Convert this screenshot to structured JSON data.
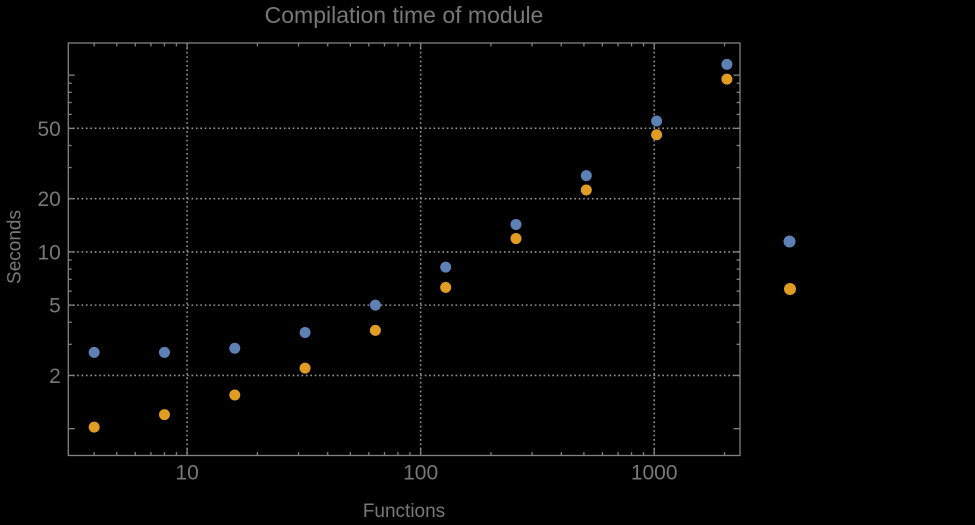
{
  "chart_data": {
    "type": "scatter",
    "title": "Compilation time of module",
    "xlabel": "Functions",
    "ylabel": "Seconds",
    "x_scale": "log",
    "y_scale": "log",
    "xlim": [
      3.1,
      2330
    ],
    "ylim": [
      0.705,
      152
    ],
    "x": [
      4,
      8,
      16,
      32,
      64,
      128,
      256,
      512,
      1024,
      2048
    ],
    "series": [
      {
        "color": "#5E81B5",
        "values": [
          2.7,
          2.7,
          2.85,
          3.5,
          5.0,
          8.2,
          14.3,
          27,
          55,
          115
        ]
      },
      {
        "color": "#E19C24",
        "values": [
          1.02,
          1.2,
          1.55,
          2.2,
          3.6,
          6.3,
          11.9,
          22.4,
          46,
          95
        ]
      }
    ],
    "x_major_ticks": [
      10,
      100,
      1000
    ],
    "x_major_labels": [
      "10",
      "100",
      "1000"
    ],
    "x_minor_ticks": [
      4,
      5,
      6,
      7,
      8,
      9,
      20,
      30,
      40,
      50,
      60,
      70,
      80,
      90,
      200,
      300,
      400,
      500,
      600,
      700,
      800,
      900,
      2000
    ],
    "y_major_ticks": [
      1,
      2,
      5,
      10,
      20,
      50,
      100
    ],
    "y_major_labels": [
      "",
      "2",
      "5",
      "10",
      "20",
      "50",
      ""
    ],
    "y_minor_ticks": [
      3,
      4,
      6,
      7,
      8,
      9,
      30,
      40,
      60,
      70,
      80,
      90
    ],
    "x_gridlines": [
      10,
      100,
      1000
    ],
    "y_gridlines": [
      2,
      5,
      10,
      20,
      50
    ],
    "grid_style": "dotted",
    "legend": {
      "position": "right-margin",
      "labels_visible": false,
      "marker_colors": [
        "#5E81B5",
        "#E19C24"
      ]
    },
    "colors": {
      "background": "#000000",
      "frame": "#828282",
      "grid": "#8f8f8f",
      "text": "#787878",
      "series1": "#5E81B5",
      "series2": "#E19C24"
    }
  }
}
